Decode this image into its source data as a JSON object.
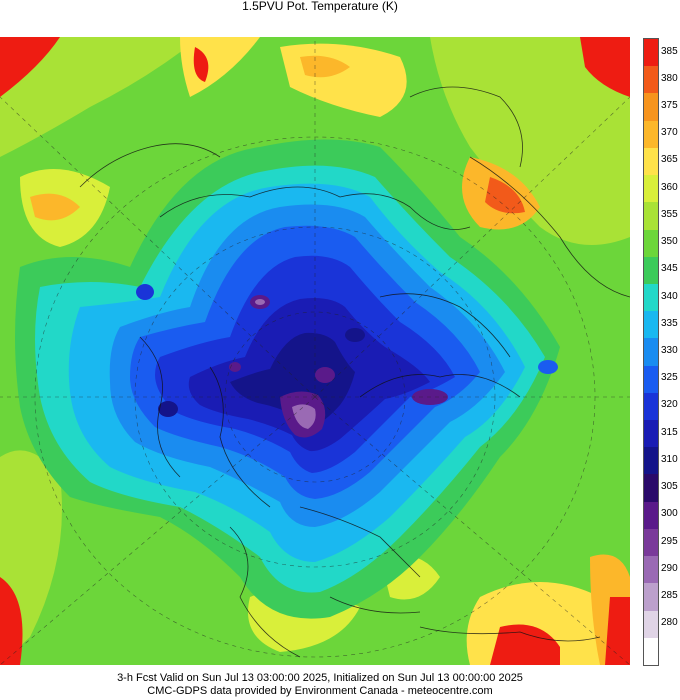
{
  "title": "1.5PVU Pot. Temperature (K)",
  "footer": {
    "line1": "3-h Fcst Valid on Sun Jul 13 03:00:00 2025, Initialized on Sun Jul 13 00:00:00 2025",
    "line2": "CMC-GDPS data provided by Environment Canada - meteocentre.com"
  },
  "colorbar": {
    "levels": [
      {
        "label": "385",
        "color": "#ee1c12"
      },
      {
        "label": "380",
        "color": "#f25a1a"
      },
      {
        "label": "375",
        "color": "#f7941d"
      },
      {
        "label": "370",
        "color": "#fcb72a"
      },
      {
        "label": "365",
        "color": "#ffe24a"
      },
      {
        "label": "360",
        "color": "#d9ef3a"
      },
      {
        "label": "355",
        "color": "#a9e236"
      },
      {
        "label": "350",
        "color": "#6cd63a"
      },
      {
        "label": "345",
        "color": "#3ccb5a"
      },
      {
        "label": "340",
        "color": "#22d8c8"
      },
      {
        "label": "335",
        "color": "#1ab8f0"
      },
      {
        "label": "330",
        "color": "#1a8cf0"
      },
      {
        "label": "325",
        "color": "#1a5cf0"
      },
      {
        "label": "320",
        "color": "#1a34d8"
      },
      {
        "label": "315",
        "color": "#1a1cb4"
      },
      {
        "label": "310",
        "color": "#14148a"
      },
      {
        "label": "305",
        "color": "#2a0a6a"
      },
      {
        "label": "300",
        "color": "#5a1a8a"
      },
      {
        "label": "295",
        "color": "#7a3a9a"
      },
      {
        "label": "290",
        "color": "#9a6ab4"
      },
      {
        "label": "285",
        "color": "#bca0cc"
      },
      {
        "label": "280",
        "color": "#e0d4e6"
      },
      {
        "label": "",
        "color": "#ffffff"
      }
    ]
  }
}
